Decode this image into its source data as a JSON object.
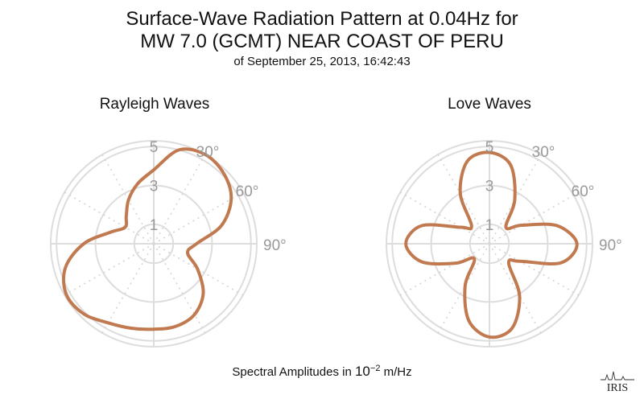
{
  "header": {
    "title_line1": "Surface-Wave Radiation Pattern at 0.04Hz for",
    "title_line2": "MW 7.0 (GCMT) NEAR COAST OF PERU",
    "subtitle": "of September 25, 2013, 16:42:43"
  },
  "footer": {
    "label_prefix": "Spectral Amplitudes in ",
    "label_base": "10",
    "label_exponent": "−2",
    "label_suffix": " m/Hz"
  },
  "logo": {
    "text": "IRIS"
  },
  "colors": {
    "pattern": "#c17a50",
    "grid": "#dddddd",
    "tick": "#999999"
  },
  "chart_data": [
    {
      "type": "polar",
      "title": "Rayleigh Waves",
      "radial_ticks": [
        1,
        3,
        5
      ],
      "angle_ticks": [
        "30°",
        "60°",
        "90°"
      ],
      "rmax": 5.3,
      "theta_deg": [
        0,
        15,
        30,
        45,
        60,
        75,
        90,
        105,
        120,
        135,
        150,
        165,
        180,
        195,
        210,
        225,
        240,
        255,
        270,
        285,
        300,
        315,
        330,
        345
      ],
      "r": [
        3.8,
        5.0,
        5.3,
        5.1,
        4.6,
        3.6,
        2.2,
        1.8,
        2.6,
        3.6,
        4.2,
        4.4,
        4.4,
        4.5,
        4.7,
        5.1,
        5.2,
        4.7,
        3.6,
        2.3,
        1.7,
        2.0,
        2.6,
        3.2
      ]
    },
    {
      "type": "polar",
      "title": "Love Waves",
      "radial_ticks": [
        1,
        3,
        5
      ],
      "angle_ticks": [
        "30°",
        "60°",
        "90°"
      ],
      "rmax": 5.3,
      "theta_deg": [
        0,
        15,
        30,
        45,
        60,
        75,
        90,
        105,
        120,
        135,
        150,
        165,
        180,
        195,
        210,
        225,
        240,
        255,
        270,
        285,
        300,
        315,
        330,
        345
      ],
      "r": [
        4.7,
        4.2,
        2.6,
        1.2,
        1.9,
        3.6,
        4.5,
        3.8,
        1.8,
        1.4,
        3.1,
        4.5,
        4.8,
        4.1,
        2.5,
        1.1,
        2.0,
        3.6,
        4.3,
        3.6,
        1.7,
        1.3,
        3.0,
        4.4
      ]
    }
  ]
}
